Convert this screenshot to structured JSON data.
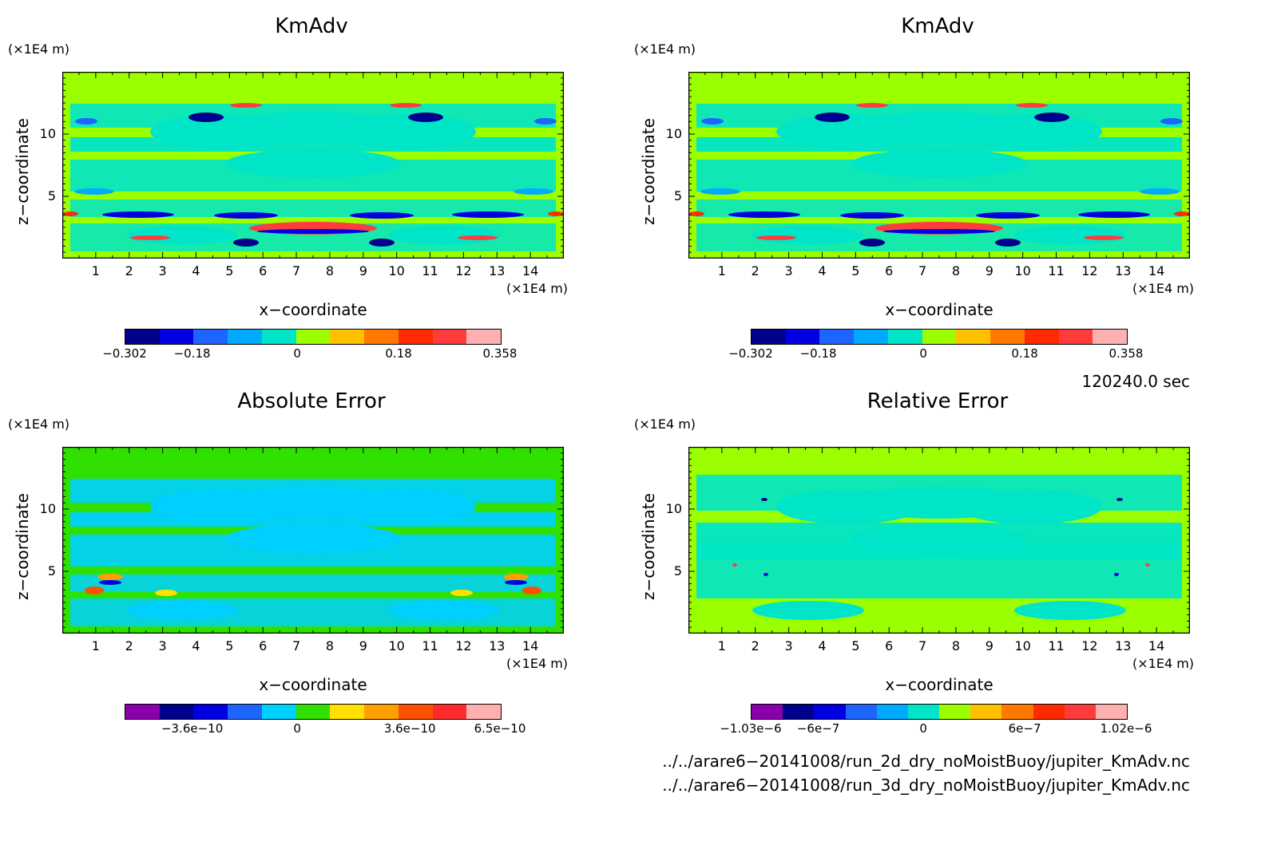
{
  "chart_data": [
    {
      "type": "heatmap",
      "title": "KmAdv",
      "xlabel": "x−coordinate",
      "ylabel": "z−coordinate",
      "x_unit": "(×1E4 m)",
      "y_unit": "(×1E4 m)",
      "x_ticks": [
        "1",
        "2",
        "3",
        "4",
        "5",
        "6",
        "7",
        "8",
        "9",
        "10",
        "11",
        "12",
        "13",
        "14"
      ],
      "y_ticks": [
        "5",
        "10"
      ],
      "xlim": [
        0,
        15
      ],
      "ylim": [
        0,
        15
      ],
      "colorbar": {
        "labels": [
          "−0.302",
          "−0.18",
          "0",
          "0.18",
          "0.358"
        ],
        "colors": [
          "#00008b",
          "#0000e0",
          "#1e64ff",
          "#00aaff",
          "#00e5c8",
          "#9bff00",
          "#ffc000",
          "#ff7800",
          "#ff2a00",
          "#ff3c3c",
          "#ffb0b0"
        ]
      }
    },
    {
      "type": "heatmap",
      "title": "KmAdv",
      "xlabel": "x−coordinate",
      "ylabel": "z−coordinate",
      "x_unit": "(×1E4 m)",
      "y_unit": "(×1E4 m)",
      "x_ticks": [
        "1",
        "2",
        "3",
        "4",
        "5",
        "6",
        "7",
        "8",
        "9",
        "10",
        "11",
        "12",
        "13",
        "14"
      ],
      "y_ticks": [
        "5",
        "10"
      ],
      "xlim": [
        0,
        15
      ],
      "ylim": [
        0,
        15
      ],
      "colorbar": {
        "labels": [
          "−0.302",
          "−0.18",
          "0",
          "0.18",
          "0.358"
        ],
        "colors": [
          "#00008b",
          "#0000e0",
          "#1e64ff",
          "#00aaff",
          "#00e5c8",
          "#9bff00",
          "#ffc000",
          "#ff7800",
          "#ff2a00",
          "#ff3c3c",
          "#ffb0b0"
        ]
      }
    },
    {
      "type": "heatmap",
      "title": "Absolute Error",
      "xlabel": "x−coordinate",
      "ylabel": "z−coordinate",
      "x_unit": "(×1E4 m)",
      "y_unit": "(×1E4 m)",
      "x_ticks": [
        "1",
        "2",
        "3",
        "4",
        "5",
        "6",
        "7",
        "8",
        "9",
        "10",
        "11",
        "12",
        "13",
        "14"
      ],
      "y_ticks": [
        "5",
        "10"
      ],
      "xlim": [
        0,
        15
      ],
      "ylim": [
        0,
        15
      ],
      "colorbar": {
        "labels": [
          "−3.6e−10",
          "0",
          "3.6e−10",
          "6.5e−10"
        ],
        "colors": [
          "#8a00aa",
          "#00008b",
          "#0000e0",
          "#1e64ff",
          "#00d0ff",
          "#30e000",
          "#ffe000",
          "#ffa000",
          "#ff5000",
          "#ff2a2a",
          "#ffb0b0"
        ]
      }
    },
    {
      "type": "heatmap",
      "title": "Relative Error",
      "xlabel": "x−coordinate",
      "ylabel": "z−coordinate",
      "x_unit": "(×1E4 m)",
      "y_unit": "(×1E4 m)",
      "x_ticks": [
        "1",
        "2",
        "3",
        "4",
        "5",
        "6",
        "7",
        "8",
        "9",
        "10",
        "11",
        "12",
        "13",
        "14"
      ],
      "y_ticks": [
        "5",
        "10"
      ],
      "xlim": [
        0,
        15
      ],
      "ylim": [
        0,
        15
      ],
      "colorbar": {
        "labels": [
          "−1.03e−6",
          "−6e−7",
          "0",
          "6e−7",
          "1.02e−6"
        ],
        "colors": [
          "#8a00aa",
          "#00008b",
          "#0000e0",
          "#1e64ff",
          "#00aaff",
          "#00e5c8",
          "#9bff00",
          "#ffc000",
          "#ff7800",
          "#ff2a00",
          "#ff3c3c",
          "#ffb0b0"
        ]
      }
    }
  ],
  "time_label": "120240.0 sec",
  "files": [
    "../../arare6−20141008/run_2d_dry_noMoistBuoy/jupiter_KmAdv.nc",
    "../../arare6−20141008/run_3d_dry_noMoistBuoy/jupiter_KmAdv.nc"
  ]
}
